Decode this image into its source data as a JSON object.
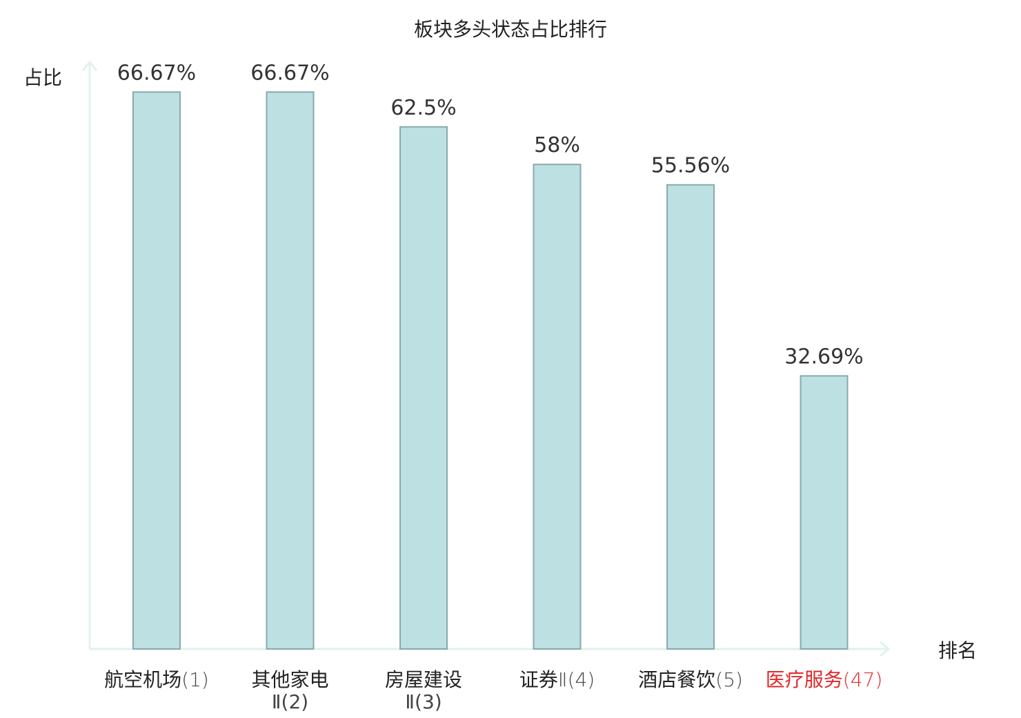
{
  "chart_data": {
    "type": "bar",
    "title": "板块多头状态占比排行",
    "ylabel": "占比",
    "xlabel": "排名",
    "ylim": [
      0,
      100
    ],
    "grid": false,
    "legend": "none",
    "categories": [
      {
        "name": "航空机场",
        "suffix": "(1)",
        "line2": ""
      },
      {
        "name": "其他家电",
        "suffix": "",
        "line2": "Ⅱ(2)"
      },
      {
        "name": "房屋建设",
        "suffix": "",
        "line2": "Ⅱ(3)"
      },
      {
        "name": "证券",
        "suffix": "Ⅱ(4)",
        "line2": ""
      },
      {
        "name": "酒店餐饮",
        "suffix": "(5)",
        "line2": ""
      },
      {
        "name": "医疗服务",
        "suffix": "(47)",
        "line2": "",
        "highlight": true
      }
    ],
    "values": [
      66.67,
      66.67,
      62.5,
      58,
      55.56,
      32.69
    ],
    "value_labels": [
      "66.67%",
      "66.67%",
      "62.5%",
      "58%",
      "55.56%",
      "32.69%"
    ],
    "colors": {
      "bar_fill": "#bde0e2",
      "bar_stroke": "#8aa9ab",
      "axis": "#dff2ee",
      "text": "#222222",
      "highlight": "#e0282a"
    }
  }
}
